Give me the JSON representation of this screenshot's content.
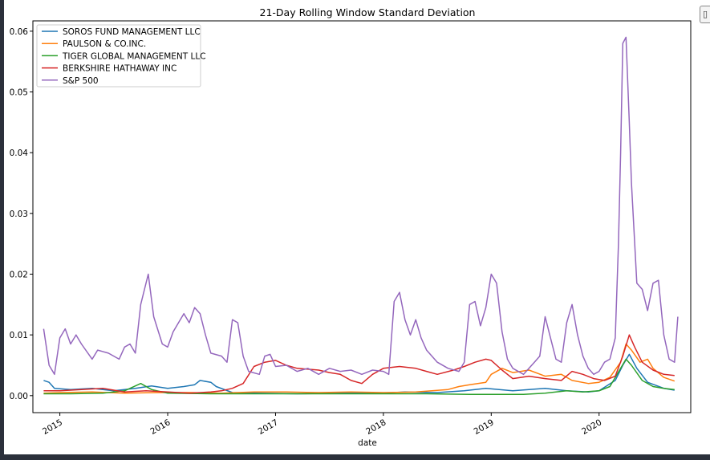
{
  "chart_data": {
    "type": "line",
    "title": "21-Day Rolling Window Standard Deviation",
    "xlabel": "date",
    "ylabel": "",
    "xlim": [
      2014.75,
      2020.85
    ],
    "ylim": [
      -0.0028,
      0.0617
    ],
    "xticks": [
      2015,
      2016,
      2017,
      2018,
      2019,
      2020
    ],
    "xtick_labels": [
      "2015",
      "2016",
      "2017",
      "2018",
      "2019",
      "2020"
    ],
    "yticks": [
      0.0,
      0.01,
      0.02,
      0.03,
      0.04,
      0.05,
      0.06
    ],
    "ytick_labels": [
      "0.00",
      "0.01",
      "0.02",
      "0.03",
      "0.04",
      "0.05",
      "0.06"
    ],
    "grid": false,
    "legend_position": "upper left",
    "series": [
      {
        "name": "SOROS FUND MANAGEMENT LLC",
        "color": "#1f77b4",
        "points": [
          [
            2014.85,
            0.0025
          ],
          [
            2014.9,
            0.0022
          ],
          [
            2014.95,
            0.0012
          ],
          [
            2015.1,
            0.001
          ],
          [
            2015.3,
            0.0012
          ],
          [
            2015.5,
            0.0008
          ],
          [
            2015.7,
            0.0012
          ],
          [
            2015.85,
            0.0016
          ],
          [
            2016.0,
            0.0012
          ],
          [
            2016.15,
            0.0015
          ],
          [
            2016.25,
            0.0018
          ],
          [
            2016.3,
            0.0025
          ],
          [
            2016.4,
            0.0022
          ],
          [
            2016.45,
            0.0015
          ],
          [
            2016.6,
            0.0005
          ],
          [
            2016.8,
            0.0004
          ],
          [
            2017.2,
            0.0003
          ],
          [
            2017.6,
            0.0004
          ],
          [
            2018.0,
            0.0004
          ],
          [
            2018.2,
            0.0006
          ],
          [
            2018.5,
            0.0005
          ],
          [
            2018.75,
            0.0008
          ],
          [
            2018.95,
            0.0012
          ],
          [
            2019.2,
            0.0008
          ],
          [
            2019.5,
            0.0012
          ],
          [
            2019.7,
            0.0008
          ],
          [
            2019.9,
            0.0006
          ],
          [
            2020.0,
            0.0008
          ],
          [
            2020.15,
            0.0025
          ],
          [
            2020.22,
            0.005
          ],
          [
            2020.28,
            0.0068
          ],
          [
            2020.35,
            0.0045
          ],
          [
            2020.45,
            0.0022
          ],
          [
            2020.6,
            0.0012
          ],
          [
            2020.7,
            0.0009
          ]
        ]
      },
      {
        "name": "PAULSON & CO.INC.",
        "color": "#ff7f0e",
        "points": [
          [
            2014.85,
            0.0004
          ],
          [
            2015.0,
            0.0005
          ],
          [
            2015.3,
            0.0006
          ],
          [
            2015.6,
            0.0004
          ],
          [
            2015.9,
            0.0005
          ],
          [
            2016.2,
            0.0005
          ],
          [
            2016.5,
            0.0004
          ],
          [
            2016.8,
            0.0006
          ],
          [
            2017.1,
            0.0006
          ],
          [
            2017.4,
            0.0005
          ],
          [
            2017.7,
            0.0006
          ],
          [
            2018.0,
            0.0005
          ],
          [
            2018.3,
            0.0006
          ],
          [
            2018.6,
            0.001
          ],
          [
            2018.7,
            0.0015
          ],
          [
            2018.8,
            0.0018
          ],
          [
            2018.95,
            0.0022
          ],
          [
            2019.0,
            0.0035
          ],
          [
            2019.1,
            0.0045
          ],
          [
            2019.2,
            0.0038
          ],
          [
            2019.35,
            0.0042
          ],
          [
            2019.5,
            0.0032
          ],
          [
            2019.65,
            0.0035
          ],
          [
            2019.75,
            0.0025
          ],
          [
            2019.9,
            0.002
          ],
          [
            2020.0,
            0.0022
          ],
          [
            2020.1,
            0.003
          ],
          [
            2020.2,
            0.0055
          ],
          [
            2020.25,
            0.0085
          ],
          [
            2020.3,
            0.0075
          ],
          [
            2020.38,
            0.0055
          ],
          [
            2020.45,
            0.006
          ],
          [
            2020.5,
            0.0045
          ],
          [
            2020.6,
            0.003
          ],
          [
            2020.7,
            0.0024
          ]
        ]
      },
      {
        "name": "TIGER GLOBAL MANAGEMENT LLC",
        "color": "#2ca02c",
        "points": [
          [
            2014.85,
            0.0003
          ],
          [
            2015.1,
            0.0003
          ],
          [
            2015.4,
            0.0004
          ],
          [
            2015.6,
            0.0008
          ],
          [
            2015.75,
            0.002
          ],
          [
            2015.85,
            0.001
          ],
          [
            2016.0,
            0.0004
          ],
          [
            2016.4,
            0.0003
          ],
          [
            2016.8,
            0.0003
          ],
          [
            2017.2,
            0.0003
          ],
          [
            2017.6,
            0.0003
          ],
          [
            2018.0,
            0.0003
          ],
          [
            2018.4,
            0.0003
          ],
          [
            2018.8,
            0.0002
          ],
          [
            2019.0,
            0.0002
          ],
          [
            2019.3,
            0.0002
          ],
          [
            2019.5,
            0.0004
          ],
          [
            2019.7,
            0.0008
          ],
          [
            2019.85,
            0.0006
          ],
          [
            2020.0,
            0.0008
          ],
          [
            2020.1,
            0.0015
          ],
          [
            2020.2,
            0.0045
          ],
          [
            2020.25,
            0.006
          ],
          [
            2020.3,
            0.005
          ],
          [
            2020.4,
            0.0025
          ],
          [
            2020.5,
            0.0015
          ],
          [
            2020.6,
            0.0012
          ],
          [
            2020.7,
            0.001
          ]
        ]
      },
      {
        "name": "BERKSHIRE HATHAWAY INC",
        "color": "#d62728",
        "points": [
          [
            2014.85,
            0.0008
          ],
          [
            2015.0,
            0.0008
          ],
          [
            2015.2,
            0.001
          ],
          [
            2015.4,
            0.0012
          ],
          [
            2015.6,
            0.0006
          ],
          [
            2015.8,
            0.0008
          ],
          [
            2016.0,
            0.0006
          ],
          [
            2016.2,
            0.0004
          ],
          [
            2016.4,
            0.0006
          ],
          [
            2016.5,
            0.0008
          ],
          [
            2016.6,
            0.0012
          ],
          [
            2016.7,
            0.002
          ],
          [
            2016.8,
            0.0048
          ],
          [
            2016.9,
            0.0055
          ],
          [
            2017.0,
            0.0058
          ],
          [
            2017.1,
            0.005
          ],
          [
            2017.2,
            0.0045
          ],
          [
            2017.4,
            0.0042
          ],
          [
            2017.5,
            0.0038
          ],
          [
            2017.6,
            0.0035
          ],
          [
            2017.7,
            0.0025
          ],
          [
            2017.8,
            0.002
          ],
          [
            2017.9,
            0.0035
          ],
          [
            2018.0,
            0.0045
          ],
          [
            2018.15,
            0.0048
          ],
          [
            2018.3,
            0.0045
          ],
          [
            2018.4,
            0.004
          ],
          [
            2018.5,
            0.0035
          ],
          [
            2018.65,
            0.0042
          ],
          [
            2018.75,
            0.0048
          ],
          [
            2018.85,
            0.0055
          ],
          [
            2018.95,
            0.006
          ],
          [
            2019.0,
            0.0058
          ],
          [
            2019.1,
            0.0042
          ],
          [
            2019.2,
            0.0028
          ],
          [
            2019.35,
            0.0032
          ],
          [
            2019.5,
            0.0028
          ],
          [
            2019.65,
            0.0025
          ],
          [
            2019.75,
            0.004
          ],
          [
            2019.85,
            0.0035
          ],
          [
            2019.95,
            0.0028
          ],
          [
            2020.05,
            0.0025
          ],
          [
            2020.15,
            0.0032
          ],
          [
            2020.22,
            0.0065
          ],
          [
            2020.28,
            0.01
          ],
          [
            2020.33,
            0.008
          ],
          [
            2020.4,
            0.0055
          ],
          [
            2020.5,
            0.0042
          ],
          [
            2020.6,
            0.0035
          ],
          [
            2020.7,
            0.0033
          ]
        ]
      },
      {
        "name": "S&P 500",
        "color": "#9467bd",
        "points": [
          [
            2014.85,
            0.011
          ],
          [
            2014.9,
            0.005
          ],
          [
            2014.95,
            0.0035
          ],
          [
            2015.0,
            0.0095
          ],
          [
            2015.05,
            0.011
          ],
          [
            2015.1,
            0.0085
          ],
          [
            2015.15,
            0.01
          ],
          [
            2015.2,
            0.0085
          ],
          [
            2015.3,
            0.006
          ],
          [
            2015.35,
            0.0075
          ],
          [
            2015.45,
            0.007
          ],
          [
            2015.55,
            0.006
          ],
          [
            2015.6,
            0.008
          ],
          [
            2015.65,
            0.0085
          ],
          [
            2015.7,
            0.007
          ],
          [
            2015.75,
            0.015
          ],
          [
            2015.82,
            0.02
          ],
          [
            2015.87,
            0.013
          ],
          [
            2015.95,
            0.0085
          ],
          [
            2016.0,
            0.008
          ],
          [
            2016.05,
            0.0105
          ],
          [
            2016.1,
            0.012
          ],
          [
            2016.15,
            0.0135
          ],
          [
            2016.2,
            0.012
          ],
          [
            2016.25,
            0.0145
          ],
          [
            2016.3,
            0.0135
          ],
          [
            2016.35,
            0.01
          ],
          [
            2016.4,
            0.007
          ],
          [
            2016.5,
            0.0065
          ],
          [
            2016.55,
            0.0055
          ],
          [
            2016.6,
            0.0125
          ],
          [
            2016.65,
            0.012
          ],
          [
            2016.7,
            0.0065
          ],
          [
            2016.75,
            0.004
          ],
          [
            2016.85,
            0.0035
          ],
          [
            2016.9,
            0.0065
          ],
          [
            2016.95,
            0.0068
          ],
          [
            2017.0,
            0.0048
          ],
          [
            2017.1,
            0.005
          ],
          [
            2017.2,
            0.004
          ],
          [
            2017.3,
            0.0045
          ],
          [
            2017.4,
            0.0035
          ],
          [
            2017.5,
            0.0045
          ],
          [
            2017.6,
            0.004
          ],
          [
            2017.7,
            0.0042
          ],
          [
            2017.8,
            0.0035
          ],
          [
            2017.9,
            0.0042
          ],
          [
            2018.0,
            0.004
          ],
          [
            2018.05,
            0.0035
          ],
          [
            2018.1,
            0.0155
          ],
          [
            2018.15,
            0.017
          ],
          [
            2018.2,
            0.0125
          ],
          [
            2018.25,
            0.01
          ],
          [
            2018.3,
            0.0125
          ],
          [
            2018.35,
            0.0095
          ],
          [
            2018.4,
            0.0075
          ],
          [
            2018.5,
            0.0055
          ],
          [
            2018.6,
            0.0045
          ],
          [
            2018.7,
            0.004
          ],
          [
            2018.75,
            0.0055
          ],
          [
            2018.8,
            0.015
          ],
          [
            2018.85,
            0.0155
          ],
          [
            2018.9,
            0.0115
          ],
          [
            2018.95,
            0.0145
          ],
          [
            2019.0,
            0.02
          ],
          [
            2019.05,
            0.0185
          ],
          [
            2019.1,
            0.0105
          ],
          [
            2019.15,
            0.006
          ],
          [
            2019.2,
            0.0045
          ],
          [
            2019.3,
            0.0035
          ],
          [
            2019.4,
            0.0055
          ],
          [
            2019.45,
            0.0065
          ],
          [
            2019.5,
            0.013
          ],
          [
            2019.55,
            0.0095
          ],
          [
            2019.6,
            0.006
          ],
          [
            2019.65,
            0.0055
          ],
          [
            2019.7,
            0.012
          ],
          [
            2019.75,
            0.015
          ],
          [
            2019.8,
            0.01
          ],
          [
            2019.85,
            0.0065
          ],
          [
            2019.9,
            0.0045
          ],
          [
            2019.95,
            0.0035
          ],
          [
            2020.0,
            0.004
          ],
          [
            2020.05,
            0.0055
          ],
          [
            2020.1,
            0.006
          ],
          [
            2020.15,
            0.0095
          ],
          [
            2020.18,
            0.025
          ],
          [
            2020.2,
            0.04
          ],
          [
            2020.22,
            0.058
          ],
          [
            2020.25,
            0.059
          ],
          [
            2020.28,
            0.045
          ],
          [
            2020.3,
            0.035
          ],
          [
            2020.35,
            0.0185
          ],
          [
            2020.4,
            0.0175
          ],
          [
            2020.45,
            0.014
          ],
          [
            2020.5,
            0.0185
          ],
          [
            2020.55,
            0.019
          ],
          [
            2020.6,
            0.01
          ],
          [
            2020.65,
            0.006
          ],
          [
            2020.7,
            0.0055
          ],
          [
            2020.73,
            0.013
          ]
        ]
      }
    ]
  },
  "ui": {
    "corner_button_glyph": "▯"
  }
}
